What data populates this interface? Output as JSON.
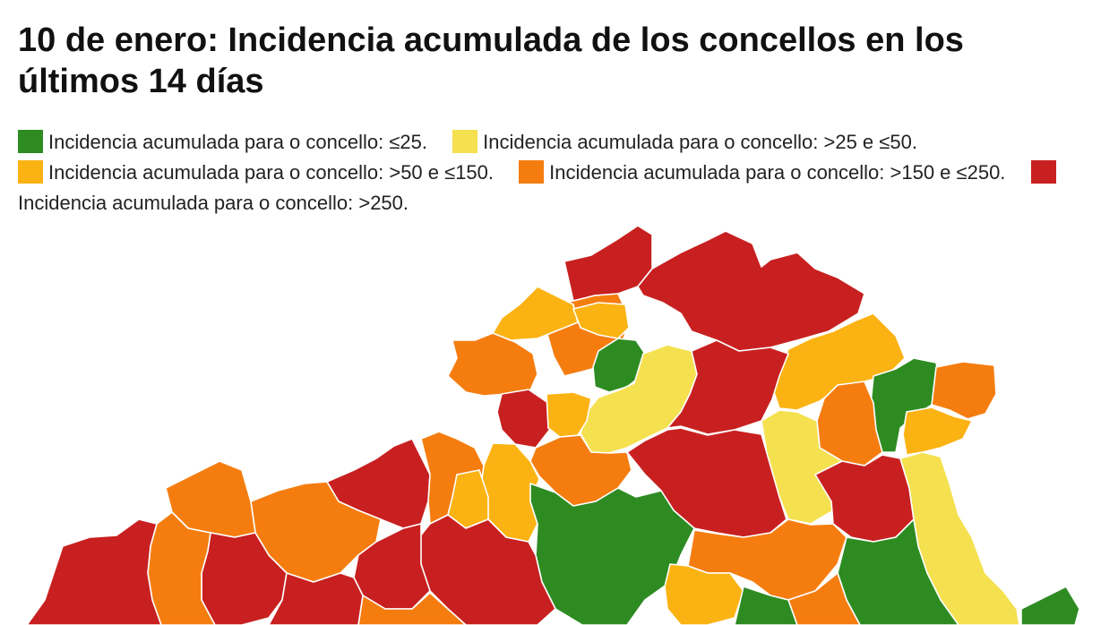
{
  "title": "10 de enero: Incidencia acumulada de los concellos en los últimos 14 días",
  "legend": [
    {
      "label": "Incidencia acumulada para o concello: ≤25.",
      "color": "#2e8b22"
    },
    {
      "label": "Incidencia acumulada para o concello: >25 e ≤50.",
      "color": "#f5e050"
    },
    {
      "label": "Incidencia acumulada para o concello: >50 e ≤150.",
      "color": "#fbb313"
    },
    {
      "label": "Incidencia acumulada para o concello: >150 e ≤250.",
      "color": "#f57d10"
    },
    {
      "label": "Incidencia acumulada para o concello: >250.",
      "color": "#c82020"
    }
  ],
  "colors": {
    "green": "#2e8b22",
    "yellow": "#f5e050",
    "amber": "#fbb313",
    "orange": "#f57d10",
    "red": "#c82020"
  }
}
